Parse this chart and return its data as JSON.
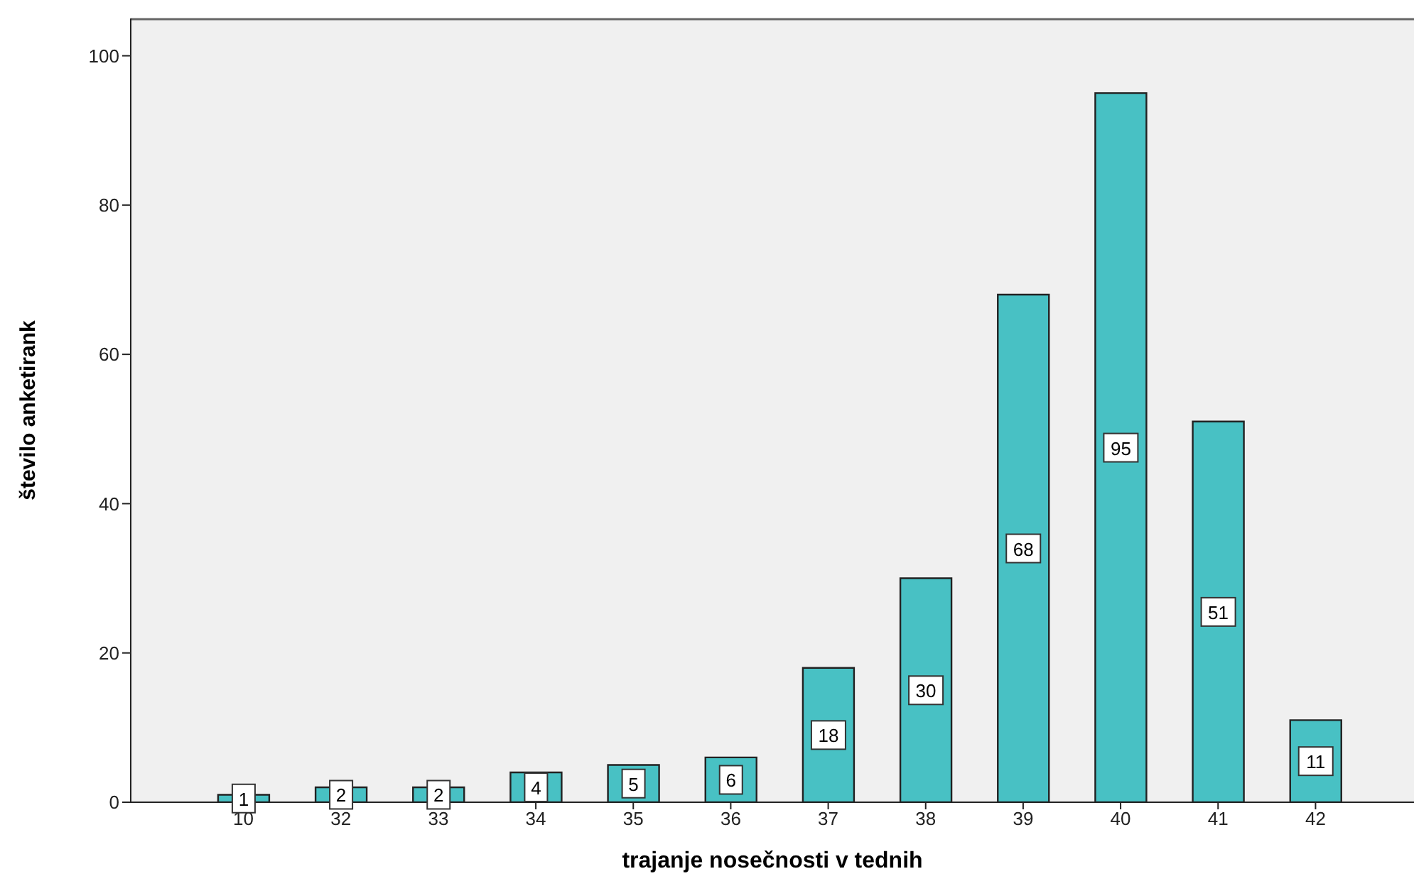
{
  "chart_data": {
    "type": "bar",
    "xlabel": "trajanje nosečnosti v tednih",
    "ylabel": "število anketirank",
    "categories": [
      "10",
      "32",
      "33",
      "34",
      "35",
      "36",
      "37",
      "38",
      "39",
      "40",
      "41",
      "42"
    ],
    "values": [
      1,
      2,
      2,
      4,
      5,
      6,
      18,
      30,
      68,
      95,
      51,
      11
    ],
    "color": "#48c1c4",
    "ylim": [
      0,
      105
    ],
    "yticks": [
      0,
      20,
      40,
      60,
      80,
      100
    ],
    "grid": false,
    "data_labels": true
  }
}
